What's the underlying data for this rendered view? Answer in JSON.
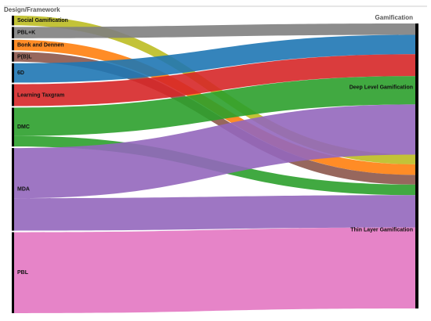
{
  "chart_data": {
    "type": "sankey",
    "source_header": "Design/Framework",
    "target_header": "Gamification",
    "nodes": [
      {
        "name": "Social Gamification",
        "color": "#bcbd22"
      },
      {
        "name": "PBL+K",
        "color": "#7f7f7f"
      },
      {
        "name": "Bonk and Dennen",
        "color": "#ff7f0e"
      },
      {
        "name": "P(B)L",
        "color": "#8c564b"
      },
      {
        "name": "6D",
        "color": "#1f77b4"
      },
      {
        "name": "Learning Taxgram",
        "color": "#d62728"
      },
      {
        "name": "DMC",
        "color": "#2ca02c"
      },
      {
        "name": "MDA",
        "color": "#9467bd"
      },
      {
        "name": "PBL",
        "color": "#e377c2"
      },
      {
        "name": "Deep Level Gamification",
        "color": "#000000"
      },
      {
        "name": "Thin Layer Gamification",
        "color": "#000000"
      }
    ],
    "links": [
      {
        "source": 0,
        "target": 10,
        "value": 12
      },
      {
        "source": 1,
        "target": 9,
        "value": 14
      },
      {
        "source": 2,
        "target": 10,
        "value": 13
      },
      {
        "source": 3,
        "target": 10,
        "value": 12
      },
      {
        "source": 4,
        "target": 9,
        "value": 24
      },
      {
        "source": 5,
        "target": 9,
        "value": 27
      },
      {
        "source": 6,
        "target": 9,
        "value": 35
      },
      {
        "source": 6,
        "target": 10,
        "value": 13
      },
      {
        "source": 7,
        "target": 9,
        "value": 62
      },
      {
        "source": 7,
        "target": 10,
        "value": 40
      },
      {
        "source": 8,
        "target": 10,
        "value": 100
      }
    ]
  }
}
